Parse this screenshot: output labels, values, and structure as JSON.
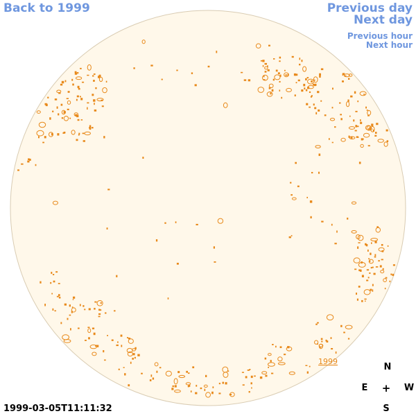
{
  "nav": {
    "back_label": "Back to 1999",
    "prev_day_label": "Previous day",
    "next_day_label": "Next day",
    "prev_hour_label": "Previous hour",
    "next_hour_label": "Next hour"
  },
  "disk": {
    "fill_color": "#fff8ea",
    "rim_color": "#d9ccb3",
    "feature_color": "#e8891a",
    "year_label": "1999"
  },
  "compass": {
    "n": "N",
    "e": "E",
    "center": "+",
    "w": "W",
    "s": "S"
  },
  "timestamp": "1999-03-05T11:11:32"
}
